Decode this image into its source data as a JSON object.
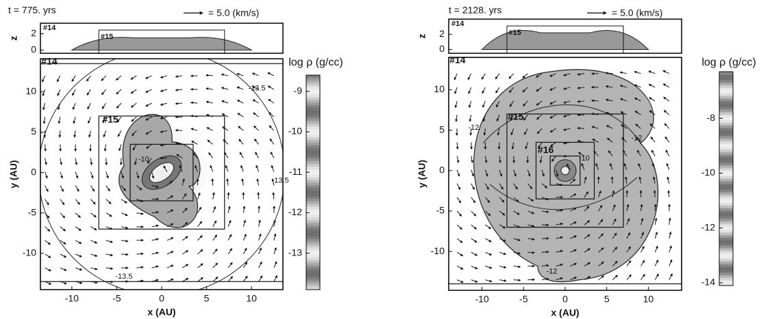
{
  "chart_data": [
    {
      "type": "density-map",
      "time_label": "t = 775. yrs",
      "vector_key_label": "= 5.0  (km/s)",
      "xlabel": "x (AU)",
      "ylabel": "y (AU)",
      "xlim": [
        -13.5,
        13.5
      ],
      "ylim": [
        -14.5,
        14.1
      ],
      "xticks": [
        -10,
        -5,
        0,
        5,
        10
      ],
      "yticks": [
        -10,
        -5,
        0,
        5,
        10
      ],
      "level_labels": [
        "#14",
        "#15"
      ],
      "contour_labels": [
        "-13.5",
        "-13.5",
        "-13.5",
        "-10"
      ],
      "z_panel": {
        "ylabel": "z",
        "ylim": [
          -0.4,
          3.3
        ],
        "yticks": [
          0,
          2
        ],
        "level_labels": [
          "#14",
          "#15"
        ]
      },
      "colorbar": {
        "label": "log ρ  (g/cc)",
        "lim": [
          -13.9,
          -8.6
        ],
        "ticks": [
          -13,
          -12,
          -11,
          -10,
          -9
        ]
      }
    },
    {
      "type": "density-map",
      "time_label": "t = 2128. yrs",
      "vector_key_label": "= 5.0  (km/s)",
      "xlabel": "x (AU)",
      "ylabel": "y (AU)",
      "xlim": [
        -14,
        14
      ],
      "ylim": [
        -14.8,
        14
      ],
      "xticks": [
        -10,
        -5,
        0,
        5,
        10
      ],
      "yticks": [
        -10,
        -5,
        0,
        5,
        10
      ],
      "level_labels": [
        "#14",
        "#15",
        "#16"
      ],
      "contour_labels": [
        "-12",
        "-12",
        "-12",
        "-10"
      ],
      "z_panel": {
        "ylabel": "z",
        "ylim": [
          -0.5,
          4
        ],
        "yticks": [
          0,
          2
        ],
        "level_labels": [
          "#14",
          "#15"
        ]
      },
      "colorbar": {
        "label": "log ρ  (g/cc)",
        "lim": [
          -14.1,
          -6.3
        ],
        "ticks": [
          -14,
          -12,
          -10,
          -8
        ]
      }
    }
  ]
}
